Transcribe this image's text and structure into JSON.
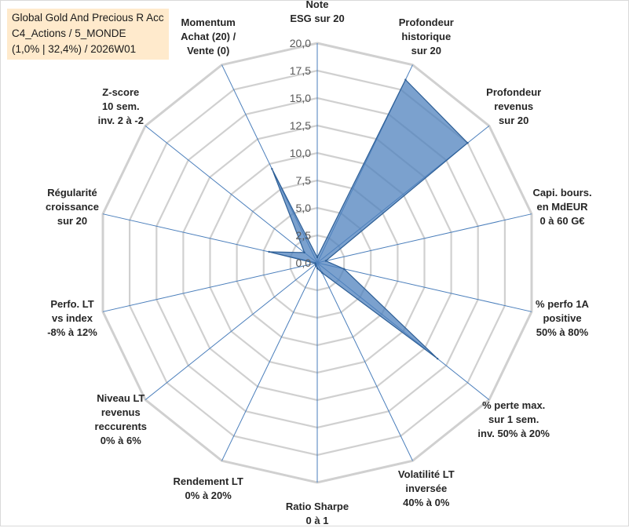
{
  "title_box": {
    "line1": "Global Gold And Precious R Acc",
    "line2": "C4_Actions / 5_MONDE",
    "line3": "(1,0% | 32,4%) / 2026W01"
  },
  "colors": {
    "series_fill": "#4f81bd",
    "series_stroke": "#2e5f96",
    "grid": "#d0d0d0",
    "spoke": "#4a7ebb",
    "title_bg": "#ffeacc"
  },
  "chart_data": {
    "type": "radar",
    "title": "Global Gold And Precious R Acc",
    "rlim": [
      0,
      20
    ],
    "rticks": [
      "0,0",
      "2,5",
      "5,0",
      "7,5",
      "10,0",
      "12,5",
      "15,0",
      "17,5",
      "20,0"
    ],
    "categories": [
      [
        "Note",
        "ESG sur 20"
      ],
      [
        "Profondeur",
        "historique",
        "sur 20"
      ],
      [
        "Profondeur",
        "revenus",
        "sur 20"
      ],
      [
        "Capi. bours.",
        "en MdEUR",
        "0 à 60 G€"
      ],
      [
        "% perfo 1A",
        "positive",
        "50% à 80%"
      ],
      [
        "% perte max.",
        "sur 1 sem.",
        "inv. 50% à 20%"
      ],
      [
        "Volatilité LT",
        "inversée",
        "40% à 0%"
      ],
      [
        "Ratio Sharpe",
        "0 à 1"
      ],
      [
        "Rendement LT",
        "0% à 20%"
      ],
      [
        "Niveau LT",
        "revenus",
        "reccurents",
        "0% à 6%"
      ],
      [
        "Perfo. LT",
        "vs index",
        "-8% à 12%"
      ],
      [
        "Régularité",
        "croissance",
        "sur 20"
      ],
      [
        "Z-score",
        "10 sem.",
        "inv. 2 à -2"
      ],
      [
        "Momentum",
        "Achat (20) /",
        "Vente (0)"
      ]
    ],
    "series": [
      {
        "name": "Global Gold And Precious R Acc",
        "values": [
          0.5,
          18.5,
          17.5,
          0.8,
          2.5,
          14.0,
          1.0,
          0.5,
          0.3,
          0.2,
          0.2,
          4.5,
          1.5,
          9.5
        ]
      }
    ],
    "grid": true
  }
}
